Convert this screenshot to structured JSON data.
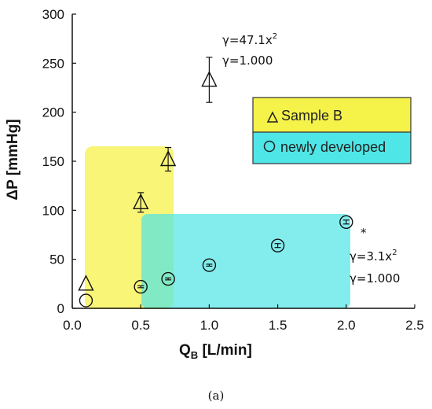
{
  "chart_data": {
    "type": "scatter",
    "xlabel": "Q",
    "xlabel_sub": "B",
    "xlabel_unit": " [L/min]",
    "ylabel": "ΔP [mmHg]",
    "xlim": [
      0.0,
      2.5
    ],
    "ylim": [
      0,
      300
    ],
    "x_ticks": [
      "0.0",
      "0.5",
      "1.0",
      "1.5",
      "2.0",
      "2.5"
    ],
    "y_ticks": [
      "0",
      "50",
      "100",
      "150",
      "200",
      "250",
      "300"
    ],
    "grid": false,
    "legend_position": "right",
    "series": [
      {
        "name": "Sample B",
        "marker": "triangle",
        "highlight_color": "#f5f24a",
        "points": [
          {
            "x": 0.1,
            "y": 25,
            "err": 0
          },
          {
            "x": 0.5,
            "y": 108,
            "err": 10
          },
          {
            "x": 0.7,
            "y": 152,
            "err": 12
          },
          {
            "x": 1.0,
            "y": 233,
            "err": 23
          }
        ]
      },
      {
        "name": "newly developed",
        "marker": "circle",
        "highlight_color": "#4ee6e6",
        "points": [
          {
            "x": 0.1,
            "y": 8,
            "err": 0
          },
          {
            "x": 0.5,
            "y": 22,
            "err": 1
          },
          {
            "x": 0.7,
            "y": 30,
            "err": 1
          },
          {
            "x": 1.0,
            "y": 44,
            "err": 1
          },
          {
            "x": 1.5,
            "y": 64,
            "err": 2
          },
          {
            "x": 2.0,
            "y": 88,
            "err": 2
          }
        ]
      }
    ],
    "annotations": [
      {
        "lines": [
          "γ=47.1x",
          "γ=1.000"
        ],
        "sup": "2"
      },
      {
        "lines": [
          "γ=3.1x",
          "γ=1.000"
        ],
        "sup": "2"
      },
      {
        "lines": [
          "*"
        ]
      }
    ],
    "caption": "(a)"
  }
}
